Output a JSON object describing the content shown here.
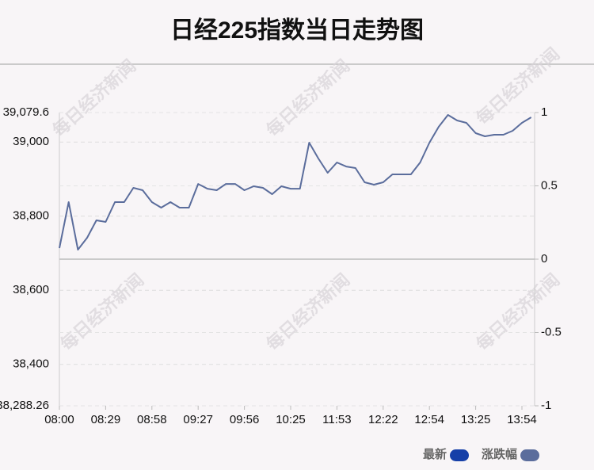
{
  "chart_data": {
    "type": "line",
    "title": "日经225指数当日走势图",
    "watermark": "每日经济新闻",
    "categories": [
      "08:00",
      null,
      null,
      null,
      null,
      "08:29",
      null,
      null,
      null,
      null,
      "08:58",
      null,
      null,
      null,
      null,
      "09:27",
      null,
      null,
      null,
      null,
      "09:56",
      null,
      null,
      null,
      null,
      "10:25",
      null,
      null,
      null,
      null,
      "11:53",
      null,
      null,
      null,
      null,
      "12:22",
      null,
      null,
      null,
      null,
      "12:54",
      null,
      null,
      null,
      null,
      "13:25",
      null,
      null,
      null,
      null,
      "13:54",
      null
    ],
    "series": [
      {
        "color": "#5b6d9c",
        "values": [
          38713.9,
          38838.0,
          38709.6,
          38741.7,
          38788.7,
          38784.4,
          38838.0,
          38838.0,
          38876.4,
          38870.0,
          38838.0,
          38823.0,
          38838.0,
          38823.0,
          38823.0,
          38887.0,
          38874.0,
          38870.0,
          38887.0,
          38887.0,
          38870.0,
          38880.7,
          38876.4,
          38859.3,
          38880.7,
          38874.0,
          38874.0,
          38998.3,
          38955.5,
          38917.0,
          38944.8,
          38934.0,
          38929.9,
          38891.4,
          38885.0,
          38891.4,
          38912.8,
          38912.8,
          38912.8,
          38944.8,
          38998.3,
          39041.0,
          39073.2,
          39058.2,
          39051.8,
          39024.0,
          39015.4,
          39019.7,
          39019.7,
          39030.4,
          39051.8,
          39066.8
        ]
      }
    ],
    "legend": [
      {
        "name": "最新",
        "color": "#1640a8"
      },
      {
        "name": "涨跌幅",
        "color": "#5b6d9c"
      }
    ],
    "ylim": [
      38288.26,
      39079.6
    ],
    "yticks": [
      {
        "value": 39079.6,
        "label": "39,079.6"
      },
      {
        "value": 39000,
        "label": "39,000"
      },
      {
        "value": 38800,
        "label": "38,800"
      },
      {
        "value": 38600,
        "label": "38,600"
      },
      {
        "value": 38400,
        "label": "38,400"
      },
      {
        "value": 38288.26,
        "label": "38,288.26"
      }
    ],
    "y2lim": [
      -1,
      1
    ],
    "y2ticks": [
      1,
      0.5,
      0,
      -0.5,
      -1
    ],
    "grid": true
  }
}
